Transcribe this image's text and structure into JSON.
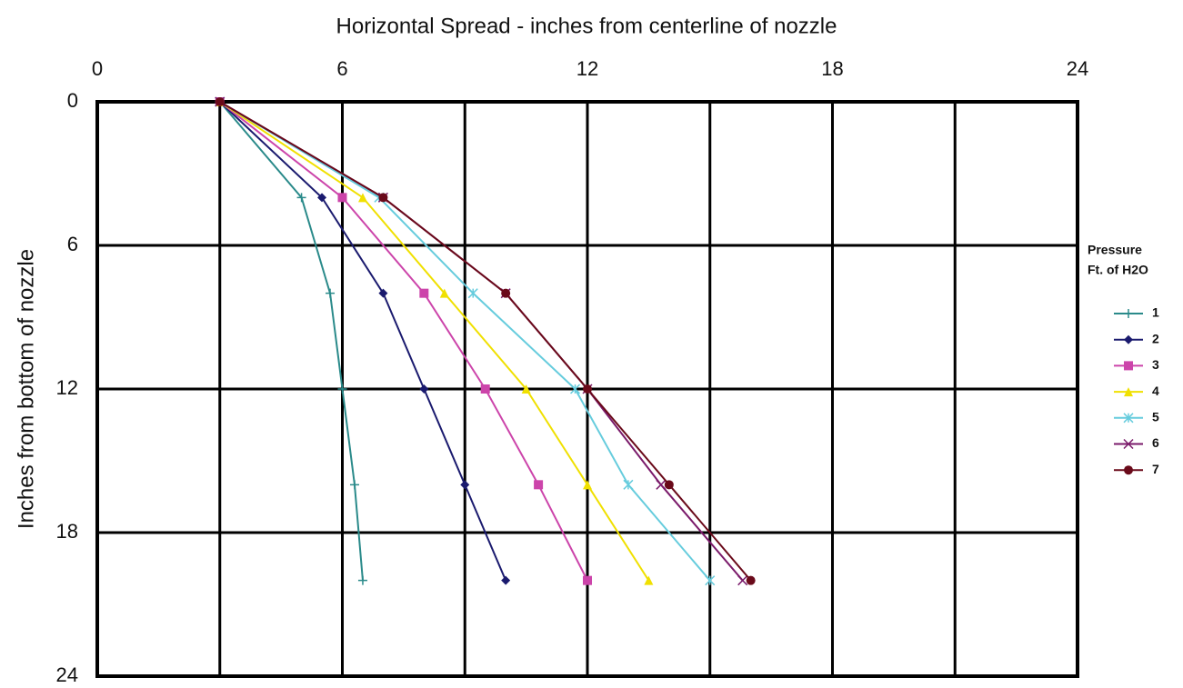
{
  "chart_data": {
    "type": "line",
    "title": "Horizontal Spread - inches from centerline of nozzle",
    "y_label": "Inches from bottom of nozzle",
    "legend_title": [
      "Pressure",
      "Ft. of H2O"
    ],
    "xlim": [
      0,
      24
    ],
    "xticks": [
      0,
      6,
      12,
      18,
      24
    ],
    "x_minor_grid": [
      3,
      9,
      15,
      21
    ],
    "ylim": [
      0,
      24
    ],
    "yticks": [
      0,
      6,
      12,
      18,
      24
    ],
    "y_inverted": true,
    "grid": true,
    "legend": "right",
    "series": [
      {
        "name": "1",
        "color": "#2a8a8a",
        "marker": "plus",
        "x": [
          3,
          5,
          5.7,
          6,
          6.3,
          6.5
        ],
        "values": [
          0,
          4,
          8,
          12,
          16,
          20
        ]
      },
      {
        "name": "2",
        "color": "#1a1a6e",
        "marker": "diamond",
        "x": [
          3,
          5.5,
          7,
          8,
          9,
          10
        ],
        "values": [
          0,
          4,
          8,
          12,
          16,
          20
        ]
      },
      {
        "name": "3",
        "color": "#cc44aa",
        "marker": "square",
        "x": [
          3,
          6,
          8,
          9.5,
          10.8,
          12
        ],
        "values": [
          0,
          4,
          8,
          12,
          16,
          20
        ]
      },
      {
        "name": "4",
        "color": "#f0e000",
        "marker": "triangle",
        "x": [
          3,
          6.5,
          8.5,
          10.5,
          12,
          13.5
        ],
        "values": [
          0,
          4,
          8,
          12,
          16,
          20
        ]
      },
      {
        "name": "5",
        "color": "#66ccdd",
        "marker": "star",
        "x": [
          3,
          6.9,
          9.2,
          11.7,
          13,
          15
        ],
        "values": [
          0,
          4,
          8,
          12,
          16,
          20
        ]
      },
      {
        "name": "6",
        "color": "#7a1a6a",
        "marker": "cross",
        "x": [
          3,
          7,
          10,
          12,
          13.8,
          15.8
        ],
        "values": [
          0,
          4,
          8,
          12,
          16,
          20
        ]
      },
      {
        "name": "7",
        "color": "#6a0a1a",
        "marker": "circle",
        "x": [
          3,
          7,
          10,
          12,
          14,
          16
        ],
        "values": [
          0,
          4,
          8,
          12,
          16,
          20
        ]
      }
    ]
  }
}
